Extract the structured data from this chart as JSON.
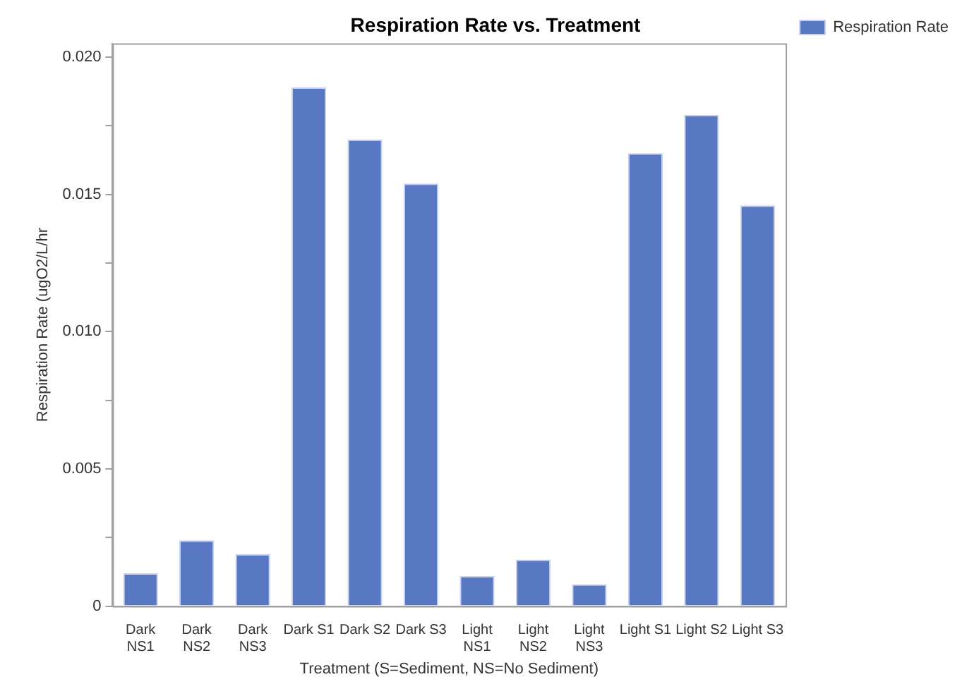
{
  "chart_data": {
    "type": "bar",
    "title": "Respiration Rate vs. Treatment",
    "xlabel": "Treatment (S=Sediment, NS=No Sediment)",
    "ylabel": "Respiration Rate (ugO2/L/hr",
    "categories": [
      "Dark NS1",
      "Dark NS2",
      "Dark NS3",
      "Dark S1",
      "Dark S2",
      "Dark S3",
      "Light NS1",
      "Light NS2",
      "Light NS3",
      "Light S1",
      "Light S2",
      "Light S3"
    ],
    "series": [
      {
        "name": "Respiration Rate",
        "color": "#5878c4",
        "values": [
          0.0012,
          0.0024,
          0.0019,
          0.0189,
          0.017,
          0.0154,
          0.0011,
          0.0017,
          0.0008,
          0.0165,
          0.0179,
          0.0146
        ]
      }
    ],
    "ylim": [
      0,
      0.0205
    ],
    "yticks": [
      0,
      {
        "value": 0.0025,
        "label": null
      },
      0.005,
      {
        "value": 0.0075,
        "label": null
      },
      {
        "value": 0.01,
        "label": "0.010"
      },
      {
        "value": 0.0125,
        "label": null
      },
      0.015,
      {
        "value": 0.0175,
        "label": null
      },
      {
        "value": 0.02,
        "label": "0.020"
      }
    ],
    "grid": false,
    "legend": "right"
  }
}
